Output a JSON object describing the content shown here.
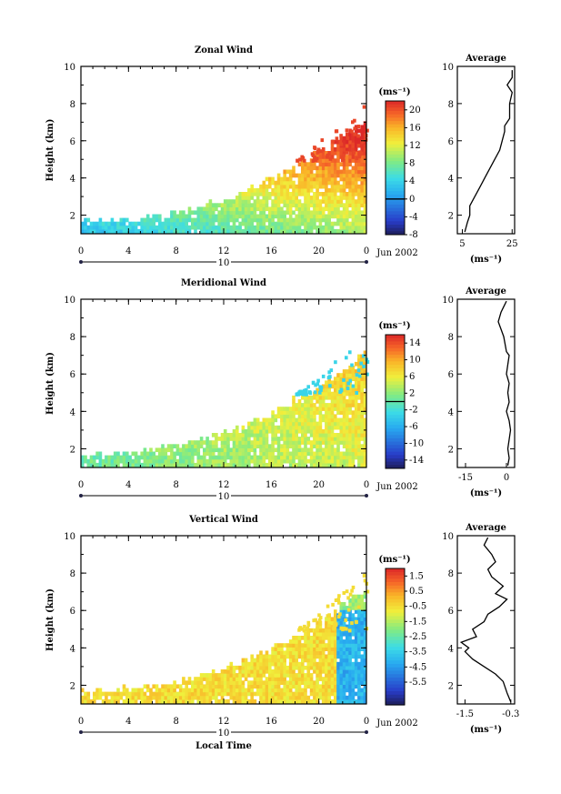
{
  "chart_data": [
    {
      "type": "heatmap",
      "title": "Zonal Wind",
      "ylabel": "Height (km)",
      "xlabel": "",
      "xlim": [
        0,
        24
      ],
      "ylim": [
        1,
        10
      ],
      "x_ticks": [
        "0",
        "4",
        "8",
        "12",
        "16",
        "20",
        "0"
      ],
      "y_ticks": [
        "2",
        "4",
        "6",
        "8",
        "10"
      ],
      "date_label": "10",
      "month_label": "Jun 2002",
      "colorbar": {
        "unit": "(ms⁻¹)",
        "min": -8,
        "max": 22,
        "zero_line": 0,
        "ticks": [
          "20",
          "16",
          "12",
          "8",
          "4",
          "0",
          "-4",
          "-8"
        ],
        "tick_values": [
          20,
          16,
          12,
          8,
          4,
          0,
          -4,
          -8
        ]
      },
      "average": {
        "title": "Average",
        "x_ticks": [
          "5",
          "25"
        ],
        "x_tick_values": [
          5,
          25
        ],
        "xlim": [
          3,
          26
        ],
        "unit": "(ms⁻¹)",
        "profile_x": [
          6,
          7,
          8,
          8,
          10,
          12,
          14,
          16,
          18,
          20,
          21,
          22,
          22,
          23,
          24,
          24,
          24,
          25,
          23,
          25,
          25
        ],
        "profile_y": [
          1.1,
          1.6,
          2.0,
          2.5,
          3.0,
          3.5,
          4.0,
          4.5,
          5.0,
          5.5,
          6.0,
          6.5,
          6.8,
          7.0,
          7.2,
          7.6,
          8.0,
          8.6,
          9.0,
          9.4,
          9.8
        ]
      }
    },
    {
      "type": "heatmap",
      "title": "Meridional Wind",
      "ylabel": "Height (km)",
      "xlabel": "",
      "xlim": [
        0,
        24
      ],
      "ylim": [
        1,
        10
      ],
      "x_ticks": [
        "0",
        "4",
        "8",
        "12",
        "16",
        "20",
        "0"
      ],
      "y_ticks": [
        "2",
        "4",
        "6",
        "8",
        "10"
      ],
      "date_label": "10",
      "month_label": "Jun 2002",
      "colorbar": {
        "unit": "(ms⁻¹)",
        "min": -16,
        "max": 16,
        "zero_line": 0,
        "ticks": [
          "14",
          "10",
          "6",
          "2",
          "-2",
          "-6",
          "-10",
          "-14"
        ],
        "tick_values": [
          14,
          10,
          6,
          2,
          -2,
          -6,
          -10,
          -14
        ]
      },
      "average": {
        "title": "Average",
        "x_ticks": [
          "-15",
          "0"
        ],
        "x_tick_values": [
          -15,
          0
        ],
        "xlim": [
          -18,
          3
        ],
        "unit": "(ms⁻¹)",
        "profile_x": [
          0.5,
          1,
          0.5,
          1,
          1.5,
          1,
          0,
          1,
          0.5,
          1,
          0,
          0.5,
          1,
          0,
          -1,
          -2,
          -3,
          -2,
          -1,
          0
        ],
        "profile_y": [
          1.1,
          1.5,
          2.0,
          2.5,
          3.0,
          3.5,
          4.0,
          4.5,
          5.0,
          5.5,
          6.0,
          6.5,
          7.0,
          7.2,
          8.0,
          8.4,
          8.8,
          9.3,
          9.6,
          9.9
        ]
      }
    },
    {
      "type": "heatmap",
      "title": "Vertical Wind",
      "ylabel": "Height (km)",
      "xlabel": "Local Time",
      "xlim": [
        0,
        24
      ],
      "ylim": [
        1,
        10
      ],
      "x_ticks": [
        "0",
        "4",
        "8",
        "12",
        "16",
        "20",
        "0"
      ],
      "y_ticks": [
        "2",
        "4",
        "6",
        "8",
        "10"
      ],
      "date_label": "10",
      "month_label": "Jun 2002",
      "colorbar": {
        "unit": "(ms⁻¹)",
        "min": -7,
        "max": 2,
        "zero_line": null,
        "ticks": [
          "1.5",
          "0.5",
          "-0.5",
          "-1.5",
          "-2.5",
          "-3.5",
          "-4.5",
          "-5.5"
        ],
        "tick_values": [
          1.5,
          0.5,
          -0.5,
          -1.5,
          -2.5,
          -3.5,
          -4.5,
          -5.5
        ]
      },
      "average": {
        "title": "Average",
        "x_ticks": [
          "-1.5",
          "-0.3"
        ],
        "x_tick_values": [
          -1.5,
          -0.3
        ],
        "xlim": [
          -1.7,
          -0.2
        ],
        "unit": "(ms⁻¹)",
        "profile_x": [
          -0.3,
          -0.4,
          -0.5,
          -0.7,
          -1.0,
          -1.3,
          -1.5,
          -1.4,
          -1.6,
          -1.2,
          -1.3,
          -1.0,
          -0.9,
          -0.6,
          -0.4,
          -0.7,
          -0.5,
          -0.8,
          -0.9,
          -0.7,
          -0.8,
          -1.0,
          -0.9
        ],
        "profile_y": [
          1.1,
          1.6,
          2.2,
          2.6,
          3.0,
          3.4,
          3.8,
          4.0,
          4.3,
          4.6,
          5.0,
          5.4,
          5.8,
          6.2,
          6.6,
          6.9,
          7.3,
          7.8,
          8.2,
          8.6,
          9.0,
          9.5,
          9.9
        ]
      }
    }
  ]
}
